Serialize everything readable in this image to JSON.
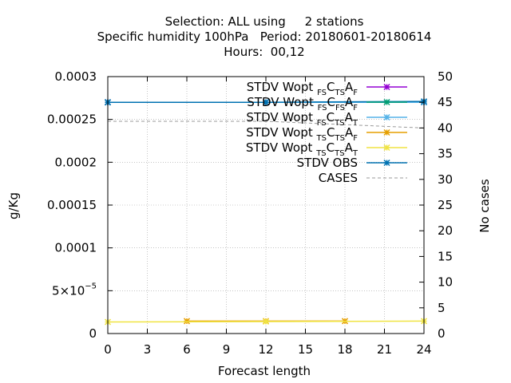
{
  "chart_data": {
    "type": "line",
    "title_lines": [
      "Selection: ALL using     2 stations",
      "Specific humidity 100hPa   Period: 20180601-20180614",
      "Hours:  00,12"
    ],
    "xlabel": "Forecast length",
    "ylabel": "g/Kg",
    "y2label": "No cases",
    "xlim": [
      0,
      24
    ],
    "ylim": [
      0,
      0.0003
    ],
    "y2lim": [
      0,
      50
    ],
    "x_ticks": [
      "0",
      "3",
      "6",
      "9",
      "12",
      "15",
      "18",
      "21",
      "24"
    ],
    "y_ticks": [
      "0",
      "5x10-5",
      "0.0001",
      "0.00015",
      "0.0002",
      "0.00025",
      "0.0003"
    ],
    "y2_ticks": [
      "0",
      "5",
      "10",
      "15",
      "20",
      "25",
      "30",
      "35",
      "40",
      "45",
      "50"
    ],
    "grid": true,
    "legend_position": "top-right",
    "series": [
      {
        "name": "STDV Wopt FS CTS AF",
        "name_parts": [
          "STDV Wopt",
          "FS",
          "C",
          "TS",
          "A",
          "F"
        ],
        "color": "#9400d3",
        "marker": "x",
        "axis": "y",
        "x": [
          0,
          12,
          24
        ],
        "values": [
          0.00027,
          0.00027,
          0.00027
        ]
      },
      {
        "name": "STDV Wopt FS CFS AF",
        "name_parts": [
          "STDV Wopt",
          "FS",
          "C",
          "FS",
          "A",
          "F"
        ],
        "color": "#009e73",
        "marker": "x",
        "axis": "y",
        "x": [
          0,
          12,
          24
        ],
        "values": [
          0.00027,
          0.00027,
          0.00027
        ]
      },
      {
        "name": "STDV Wopt FS CTS AT",
        "name_parts": [
          "STDV Wopt",
          "FS",
          "C",
          "TS",
          "A",
          "T"
        ],
        "color": "#56b4e9",
        "marker": "x",
        "axis": "y",
        "x": [
          0,
          12,
          24
        ],
        "values": [
          0.00027,
          0.00027,
          0.00027
        ]
      },
      {
        "name": "STDV Wopt TS CTS AF",
        "name_parts": [
          "STDV Wopt",
          "TS",
          "C",
          "TS",
          "A",
          "F"
        ],
        "color": "#e69f00",
        "marker": "x",
        "axis": "y",
        "x": [
          6,
          12,
          18
        ],
        "values": [
          1.45e-05,
          1.45e-05,
          1.45e-05
        ]
      },
      {
        "name": "STDV Wopt TS CTS AT",
        "name_parts": [
          "STDV Wopt",
          "TS",
          "C",
          "TS",
          "A",
          "T"
        ],
        "color": "#f0e442",
        "marker": "x",
        "axis": "y",
        "x": [
          0,
          12,
          24
        ],
        "values": [
          1.35e-05,
          1.4e-05,
          1.45e-05
        ]
      },
      {
        "name": "STDV OBS",
        "name_parts": [
          "STDV OBS"
        ],
        "color": "#0072b2",
        "marker": "x",
        "axis": "y",
        "x": [
          0,
          12,
          24
        ],
        "values": [
          0.00027,
          0.00027,
          0.000271
        ]
      },
      {
        "name": "CASES",
        "name_parts": [
          "CASES"
        ],
        "color": "#999999",
        "marker": "none",
        "dashed": true,
        "axis": "y2",
        "x": [
          0,
          12,
          24
        ],
        "values": [
          41.3,
          41.3,
          40.0
        ]
      }
    ]
  }
}
